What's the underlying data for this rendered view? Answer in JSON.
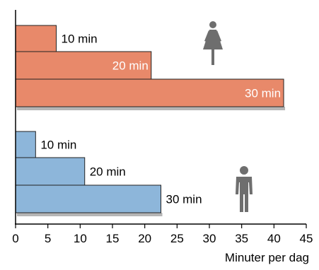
{
  "chart_data": {
    "type": "bar",
    "orientation": "horizontal",
    "xlabel": "Minuter per dag",
    "xlim": [
      0,
      45
    ],
    "x_ticks": [
      0,
      5,
      10,
      15,
      20,
      25,
      30,
      35,
      40,
      45
    ],
    "tick_labels": [
      "0",
      "5",
      "10",
      "15",
      "20",
      "25",
      "30",
      "35",
      "40",
      "45"
    ],
    "grid": false,
    "groups": [
      {
        "icon": "woman-icon",
        "color": "#E8896A",
        "shadow_color": "#B5B5B5",
        "bars": [
          {
            "label": "10 min",
            "value": 6.3,
            "label_inside": false
          },
          {
            "label": "20 min",
            "value": 21,
            "label_inside": true
          },
          {
            "label": "30 min",
            "value": 41.5,
            "label_inside": true
          }
        ]
      },
      {
        "icon": "man-icon",
        "color": "#8DB6DA",
        "shadow_color": "#B5B5B5",
        "bars": [
          {
            "label": "10 min",
            "value": 3.1,
            "label_inside": false
          },
          {
            "label": "20 min",
            "value": 10.7,
            "label_inside": false
          },
          {
            "label": "30 min",
            "value": 22.5,
            "label_inside": false
          }
        ]
      }
    ]
  }
}
